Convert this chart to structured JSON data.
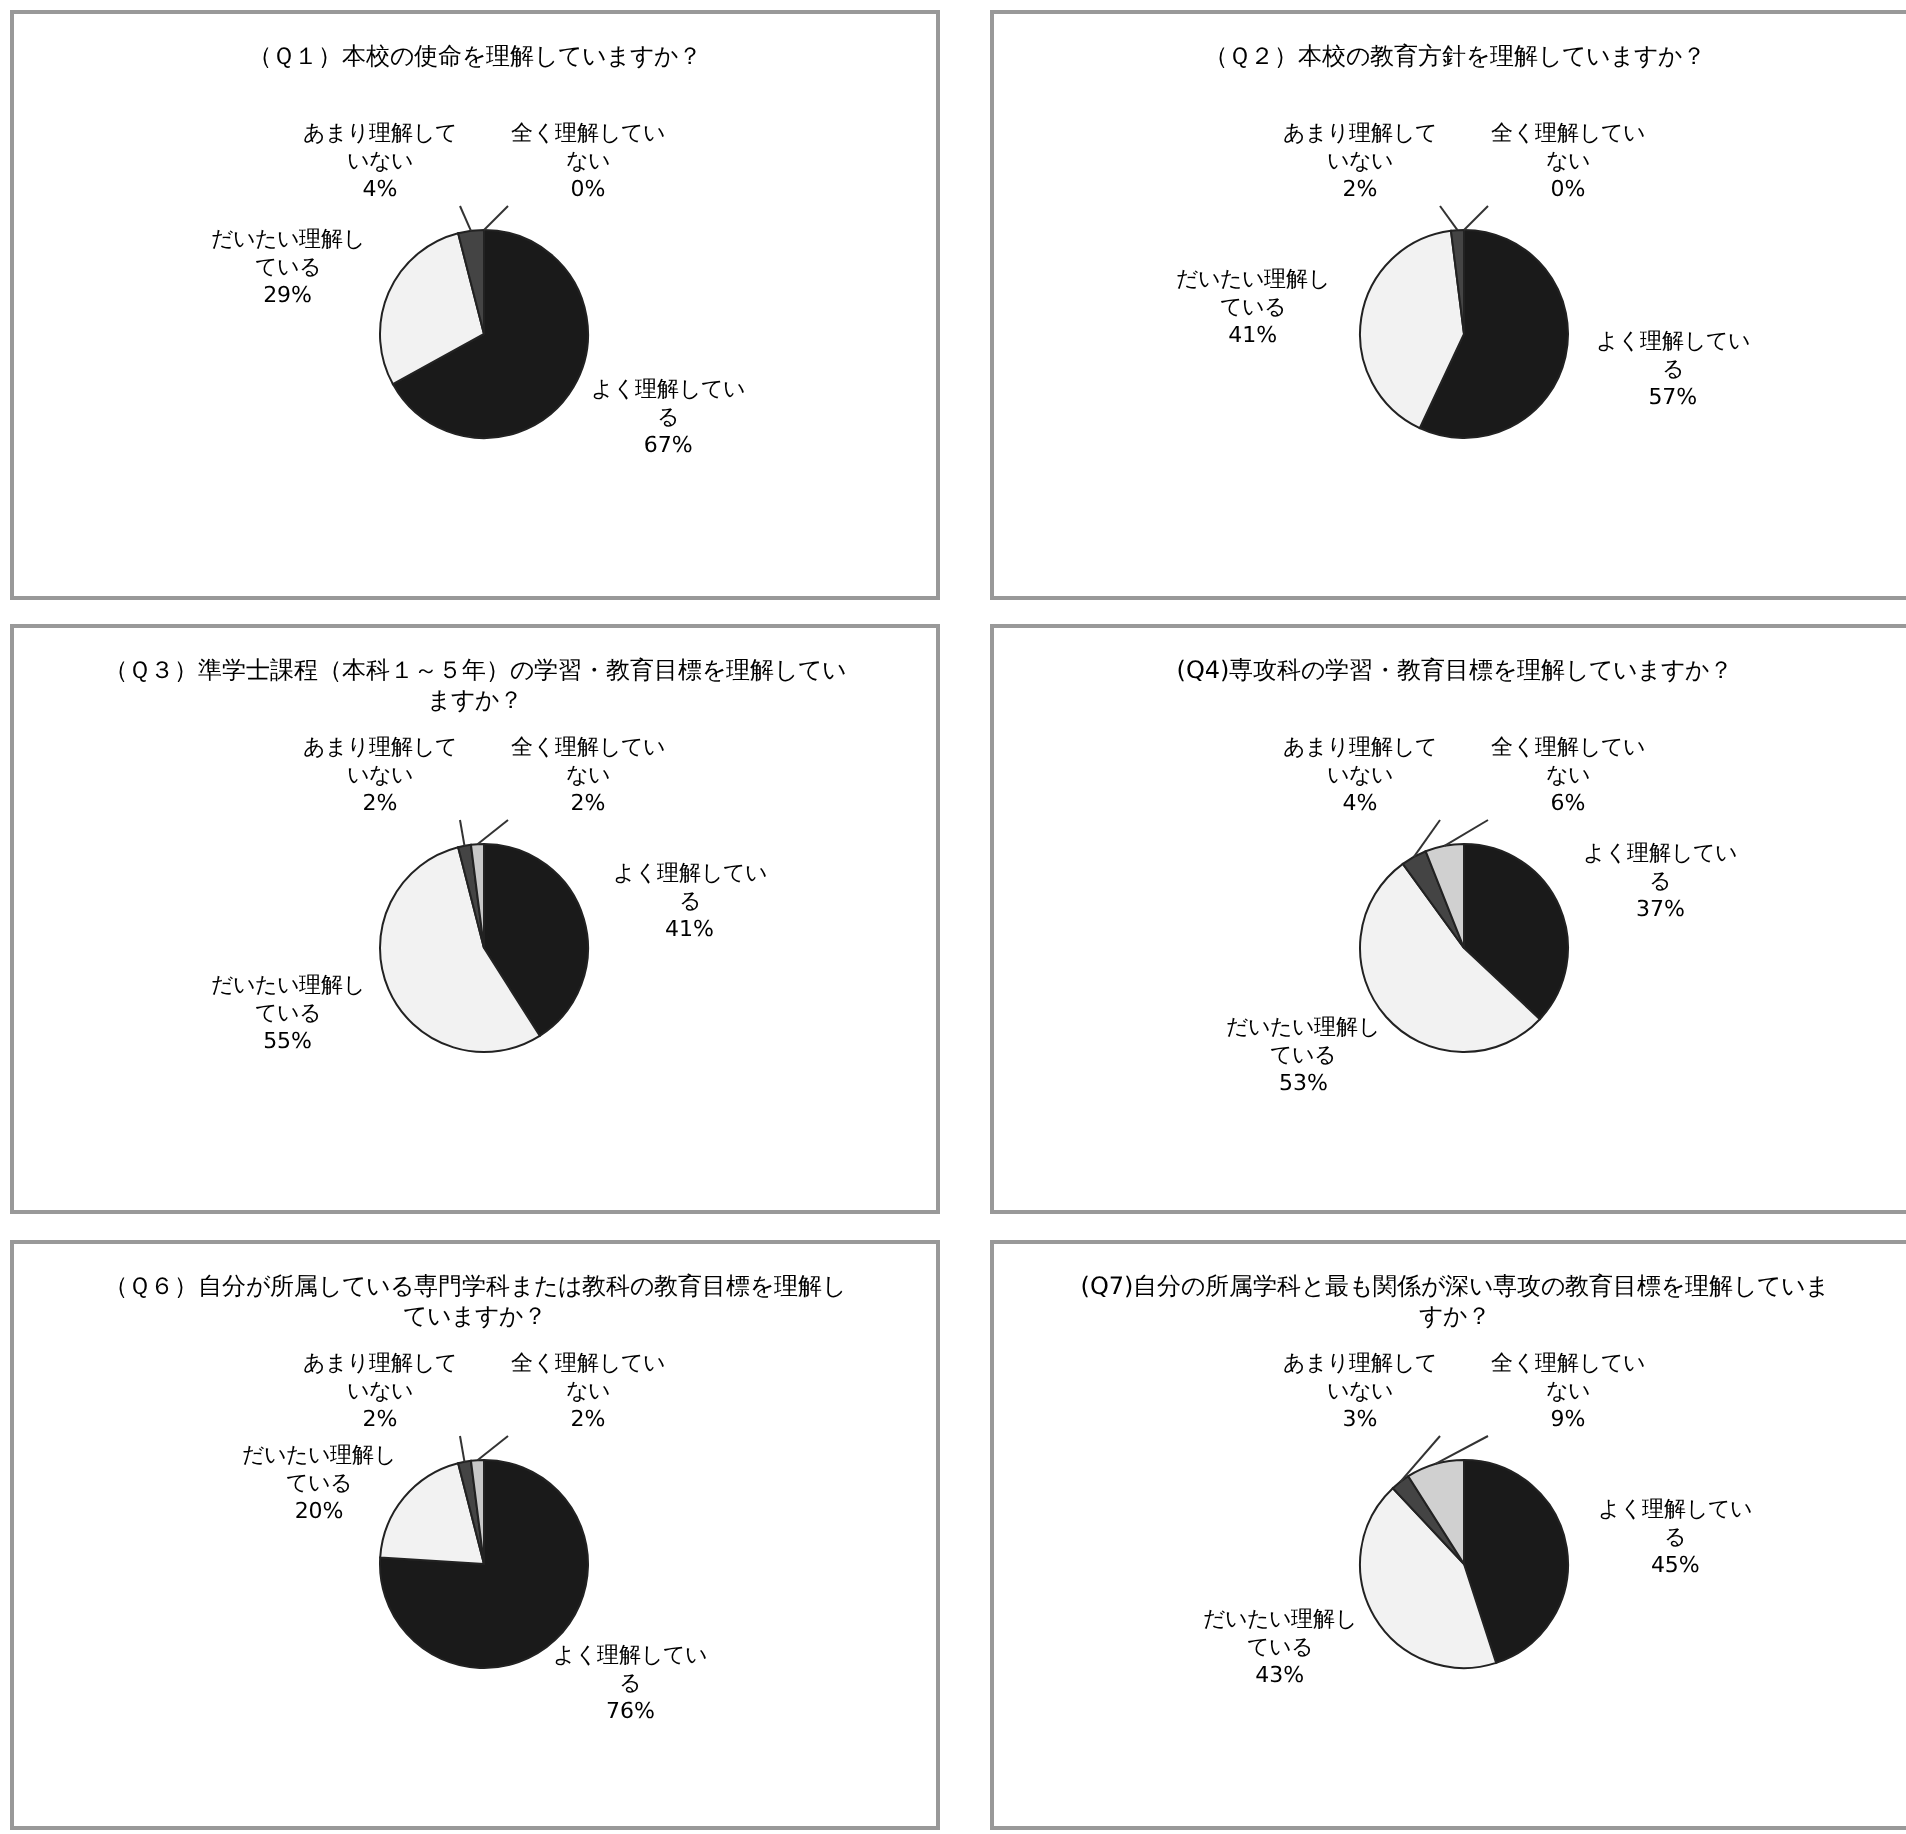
{
  "chart_data": [
    {
      "type": "pie",
      "title": "（Ｑ１）本校の使命を理解していますか？",
      "categories": [
        "よく理解している",
        "だいたい理解している",
        "あまり理解していない",
        "全く理解していない"
      ],
      "values": [
        67,
        29,
        4,
        0
      ],
      "colors": [
        "#1a1a1a",
        "#f2f2f2",
        "#444444",
        "#c8c8c8"
      ],
      "value_labels": [
        "67%",
        "29%",
        "4%",
        "0%"
      ]
    },
    {
      "type": "pie",
      "title": "（Ｑ２）本校の教育方針を理解していますか？",
      "categories": [
        "よく理解している",
        "だいたい理解している",
        "あまり理解していない",
        "全く理解していない"
      ],
      "values": [
        57,
        41,
        2,
        0
      ],
      "colors": [
        "#1a1a1a",
        "#f2f2f2",
        "#444444",
        "#c8c8c8"
      ],
      "value_labels": [
        "57%",
        "41%",
        "2%",
        "0%"
      ]
    },
    {
      "type": "pie",
      "title": "（Ｑ３）準学士課程（本科１～５年）の学習・教育目標を理解していますか？",
      "categories": [
        "よく理解している",
        "だいたい理解している",
        "あまり理解していない",
        "全く理解していない"
      ],
      "values": [
        41,
        55,
        2,
        2
      ],
      "colors": [
        "#1a1a1a",
        "#f2f2f2",
        "#444444",
        "#c8c8c8"
      ],
      "value_labels": [
        "41%",
        "55%",
        "2%",
        "2%"
      ]
    },
    {
      "type": "pie",
      "title": "(Q4)専攻科の学習・教育目標を理解していますか？",
      "categories": [
        "よく理解している",
        "だいたい理解している",
        "あまり理解していない",
        "全く理解していない"
      ],
      "values": [
        37,
        53,
        4,
        6
      ],
      "colors": [
        "#1a1a1a",
        "#f2f2f2",
        "#444444",
        "#d0d0d0"
      ],
      "value_labels": [
        "37%",
        "53%",
        "4%",
        "6%"
      ]
    },
    {
      "type": "pie",
      "title": "（Ｑ６）自分が所属している専門学科または教科の教育目標を理解していますか？",
      "categories": [
        "よく理解している",
        "だいたい理解している",
        "あまり理解していない",
        "全く理解していない"
      ],
      "values": [
        76,
        20,
        2,
        2
      ],
      "colors": [
        "#1a1a1a",
        "#f2f2f2",
        "#444444",
        "#c8c8c8"
      ],
      "value_labels": [
        "76%",
        "20%",
        "2%",
        "2%"
      ]
    },
    {
      "type": "pie",
      "title": "(Q7)自分の所属学科と最も関係が深い専攻の教育目標を理解していますか？",
      "categories": [
        "よく理解している",
        "だいたい理解している",
        "あまり理解していない",
        "全く理解していない"
      ],
      "values": [
        45,
        43,
        3,
        9
      ],
      "colors": [
        "#1a1a1a",
        "#f2f2f2",
        "#444444",
        "#d0d0d0"
      ],
      "value_labels": [
        "45%",
        "43%",
        "3%",
        "9%"
      ]
    }
  ]
}
